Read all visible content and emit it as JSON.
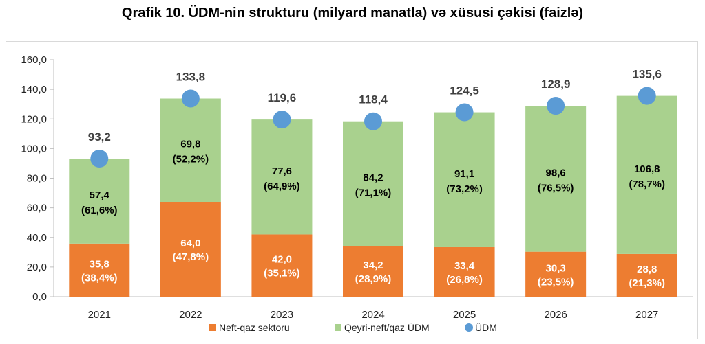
{
  "title": "Qrafik 10. ÜDM-nin strukturu (milyard manatla) və xüsusi çəkisi (faizlə)",
  "chart_data": {
    "type": "bar",
    "stacked": true,
    "categories": [
      "2021",
      "2022",
      "2023",
      "2024",
      "2025",
      "2026",
      "2027"
    ],
    "series": [
      {
        "name": "Neft-qaz sektoru",
        "color": "#ED7D31",
        "values": [
          35.8,
          64.0,
          42.0,
          34.2,
          33.4,
          30.3,
          28.8
        ],
        "labels": [
          "35,8",
          "64,0",
          "42,0",
          "34,2",
          "33,4",
          "30,3",
          "28,8"
        ],
        "shares": [
          "(38,4%)",
          "(47,8%)",
          "(35,1%)",
          "(28,9%)",
          "(26,8%)",
          "(23,5%)",
          "(21,3%)"
        ]
      },
      {
        "name": "Qeyri-neft/qaz ÜDM",
        "color": "#A9D18E",
        "values": [
          57.4,
          69.8,
          77.6,
          84.2,
          91.1,
          98.6,
          106.8
        ],
        "labels": [
          "57,4",
          "69,8",
          "77,6",
          "84,2",
          "91,1",
          "98,6",
          "106,8"
        ],
        "shares": [
          "(61,6%)",
          "(52,2%)",
          "(64,9%)",
          "(71,1%)",
          "(73,2%)",
          "(76,5%)",
          "(78,7%)"
        ]
      },
      {
        "name": "ÜDM",
        "type": "marker",
        "color": "#5B9BD5",
        "values": [
          93.2,
          133.8,
          119.6,
          118.4,
          124.5,
          128.9,
          135.6
        ],
        "labels": [
          "93,2",
          "133,8",
          "119,6",
          "118,4",
          "124,5",
          "128,9",
          "135,6"
        ]
      }
    ],
    "ylim": [
      0,
      160
    ],
    "yticks": [
      "0,0",
      "20,0",
      "40,0",
      "60,0",
      "80,0",
      "100,0",
      "120,0",
      "140,0",
      "160,0"
    ],
    "grid": false,
    "legend": "bottom"
  }
}
